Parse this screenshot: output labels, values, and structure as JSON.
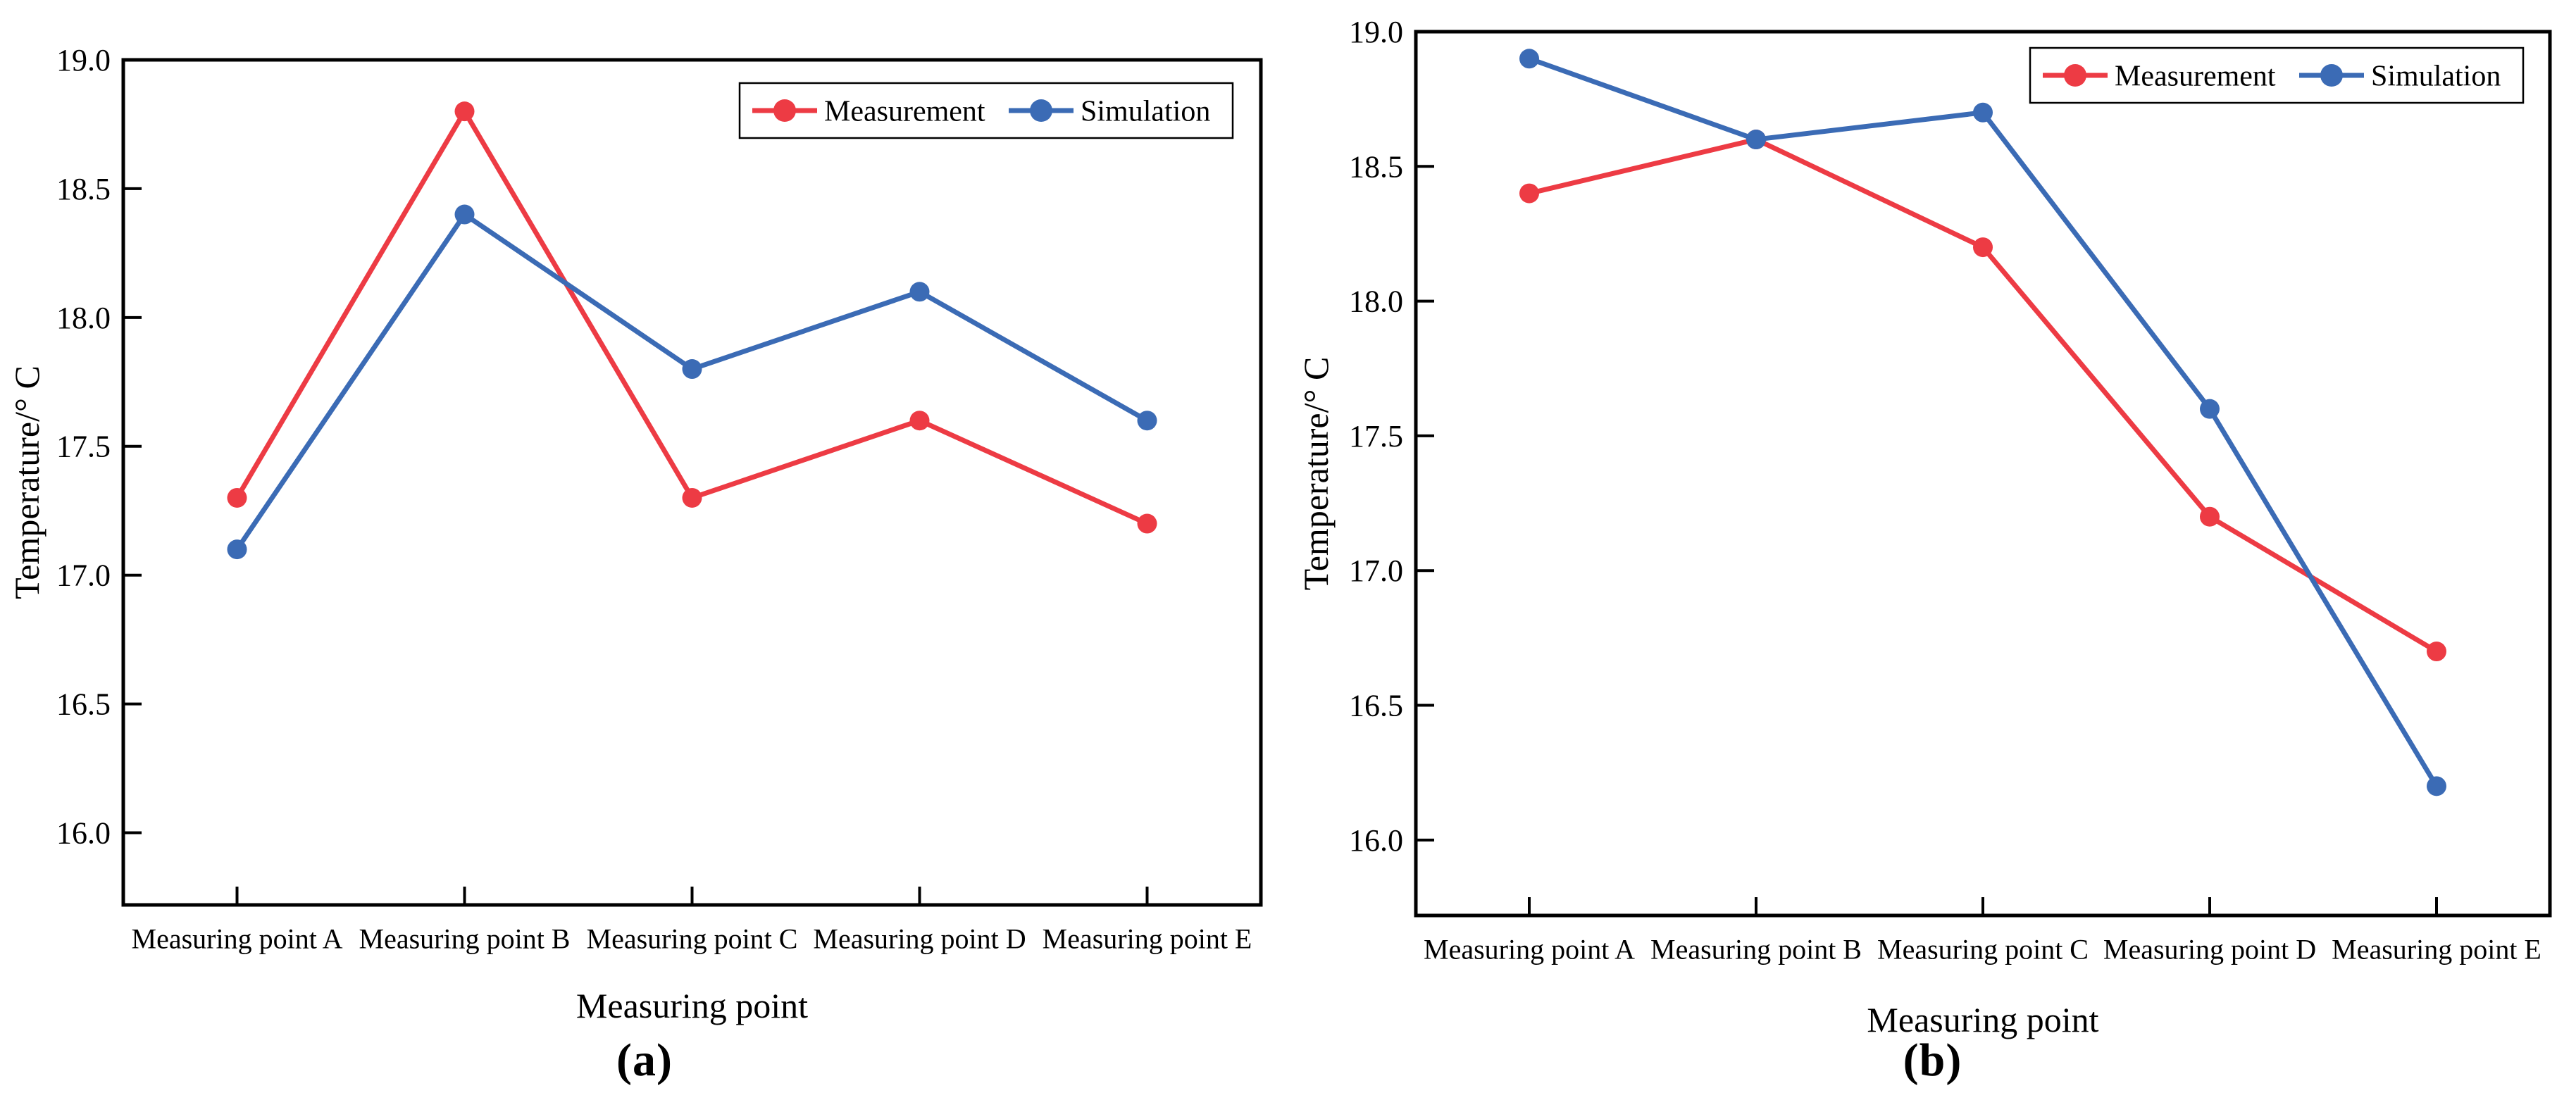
{
  "figure": {
    "background": "#ffffff",
    "panel_count": 2
  },
  "colors": {
    "measurement": "#ED3B44",
    "simulation": "#3B6BB5",
    "axis": "#000000",
    "legend_border": "#000000",
    "legend_background": "#ffffff"
  },
  "chart_data": [
    {
      "id": "a",
      "type": "line",
      "caption": "(a)",
      "xlabel": "Measuring point",
      "ylabel": "Temperature/° C",
      "categories": [
        "Measuring point A",
        "Measuring point B",
        "Measuring point C",
        "Measuring point D",
        "Measuring point E"
      ],
      "series": [
        {
          "name": "Measurement",
          "color_key": "measurement",
          "values": [
            17.3,
            18.8,
            17.3,
            17.6,
            17.2
          ]
        },
        {
          "name": "Simulation",
          "color_key": "simulation",
          "values": [
            17.1,
            18.4,
            17.8,
            18.1,
            17.6
          ]
        }
      ],
      "ylim": [
        15.72,
        19.0
      ],
      "yticks": [
        16.0,
        16.5,
        17.0,
        17.5,
        18.0,
        18.5,
        19.0
      ],
      "ytick_labels": [
        "16.0",
        "16.5",
        "17.0",
        "17.5",
        "18.0",
        "18.5",
        "19.0"
      ],
      "legend_position": "top-right",
      "grid": false
    },
    {
      "id": "b",
      "type": "line",
      "caption": "(b)",
      "xlabel": "Measuring point",
      "ylabel": "Temperature/° C",
      "categories": [
        "Measuring point A",
        "Measuring point B",
        "Measuring point C",
        "Measuring point D",
        "Measuring point E"
      ],
      "series": [
        {
          "name": "Measurement",
          "color_key": "measurement",
          "values": [
            18.4,
            18.6,
            18.2,
            17.2,
            16.7
          ]
        },
        {
          "name": "Simulation",
          "color_key": "simulation",
          "values": [
            18.9,
            18.6,
            18.7,
            17.6,
            16.2
          ]
        }
      ],
      "ylim": [
        15.72,
        19.0
      ],
      "yticks": [
        16.0,
        16.5,
        17.0,
        17.5,
        18.0,
        18.5,
        19.0
      ],
      "ytick_labels": [
        "16.0",
        "16.5",
        "17.0",
        "17.5",
        "18.0",
        "18.5",
        "19.0"
      ],
      "legend_position": "top-right",
      "grid": false
    }
  ]
}
